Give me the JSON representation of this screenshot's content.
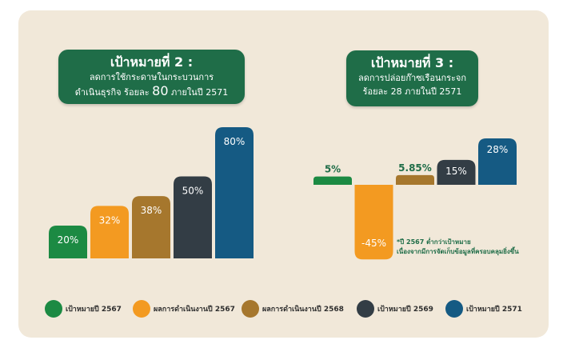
{
  "titles": {
    "goal2": {
      "heading": "เป้าหมายที่ 2 :",
      "line1": "ลดการใช้กระดาษในกระบวนการ",
      "line2_pre": "ดำเนินธุรกิจ ร้อยละ",
      "line2_num": "80",
      "line2_post": "ภายในปี 2571"
    },
    "goal3": {
      "heading": "เป้าหมายที่ 3 :",
      "line1": "ลดการปล่อยก๊าซเรือนกระจก",
      "line2": "ร้อยละ 28 ภายในปี 2571"
    }
  },
  "note": {
    "line1": "*ปี 2567 ต่ำกว่าเป้าหมาย",
    "line2": "เนื่องจากมีการจัดเก็บข้อมูลที่ครอบคลุมยิ่งขึ้น"
  },
  "chart_data": [
    {
      "type": "bar",
      "title": "เป้าหมายที่ 2 : ลดการใช้กระดาษในกระบวนการดำเนินธุรกิจ ร้อยละ 80 ภายในปี 2571",
      "categories": [
        "เป้าหมายปี 2567",
        "ผลการดำเนินงานปี 2567",
        "ผลการดำเนินงานปี 2568",
        "เป้าหมายปี 2569",
        "เป้าหมายปี 2571"
      ],
      "values": [
        20,
        32,
        38,
        50,
        80
      ],
      "labels": [
        "20%",
        "32%",
        "38%",
        "50%",
        "80%"
      ],
      "colors": [
        "#1c8a43",
        "#f39a21",
        "#a6772d",
        "#333d45",
        "#155a83"
      ],
      "ylim": [
        0,
        80
      ]
    },
    {
      "type": "bar",
      "title": "เป้าหมายที่ 3 : ลดการปล่อยก๊าซเรือนกระจก ร้อยละ 28 ภายในปี 2571",
      "categories": [
        "เป้าหมายปี 2567",
        "ผลการดำเนินงานปี 2567",
        "ผลการดำเนินงานปี 2568",
        "เป้าหมายปี 2569",
        "เป้าหมายปี 2571"
      ],
      "values": [
        5,
        -45,
        5.85,
        15,
        28
      ],
      "labels": [
        "5%",
        "-45%",
        "5.85%",
        "15%",
        "28%"
      ],
      "colors": [
        "#1c8a43",
        "#f39a21",
        "#a6772d",
        "#333d45",
        "#155a83"
      ],
      "ylim": [
        -45,
        28
      ]
    }
  ],
  "legend": [
    {
      "label": "เป้าหมายปี 2567",
      "color": "#1c8a43"
    },
    {
      "label": "ผลการดำเนินงานปี 2567",
      "color": "#f39a21"
    },
    {
      "label": "ผลการดำเนินงานปี 2568",
      "color": "#a6772d"
    },
    {
      "label": "เป้าหมายปี 2569",
      "color": "#333d45"
    },
    {
      "label": "เป้าหมายปี 2571",
      "color": "#155a83"
    }
  ]
}
